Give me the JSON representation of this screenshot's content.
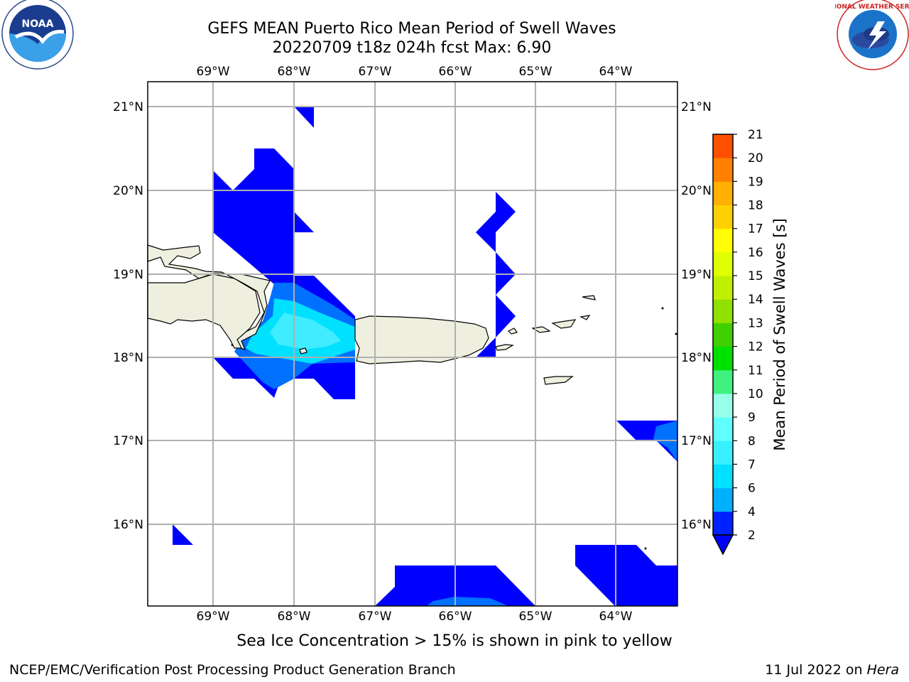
{
  "header": {
    "title_line1": "GEFS MEAN Puerto Rico Mean Period of Swell Waves",
    "title_line2": "20220709 t18z 024h fcst   Max: 6.90"
  },
  "map": {
    "lon_labels": [
      "69°W",
      "68°W",
      "67°W",
      "66°W",
      "65°W",
      "64°W"
    ],
    "lat_labels": [
      "21°N",
      "20°N",
      "19°N",
      "18°N",
      "17°N",
      "16°N"
    ],
    "land_color": "#efefdf",
    "grid_color": "#b0b0b0"
  },
  "colorbar": {
    "label": "Mean Period of Swell Waves [s]",
    "ticks": [
      "2",
      "4",
      "6",
      "7",
      "8",
      "9",
      "10",
      "11",
      "12",
      "13",
      "14",
      "15",
      "16",
      "17",
      "18",
      "19",
      "20",
      "21"
    ],
    "colors": [
      "#0022ff",
      "#00b0ff",
      "#00e0ff",
      "#38f0ff",
      "#60ffff",
      "#98ffe8",
      "#40f080",
      "#00e000",
      "#40d000",
      "#90e000",
      "#c0f000",
      "#e0ff00",
      "#ffff00",
      "#ffd000",
      "#ffb000",
      "#ff8000",
      "#ff5000",
      "#ff2000",
      "#ff0000"
    ],
    "under_color": "#0000ff"
  },
  "footer": {
    "ice_note": "Sea Ice Concentration > 15% is shown in pink to yellow",
    "credit": "NCEP/EMC/Verification Post Processing Product Generation Branch",
    "date": "11 Jul 2022 on",
    "machine": "Hera"
  },
  "logos": {
    "left": "NOAA",
    "right": "NATIONAL WEATHER SERVICE"
  }
}
